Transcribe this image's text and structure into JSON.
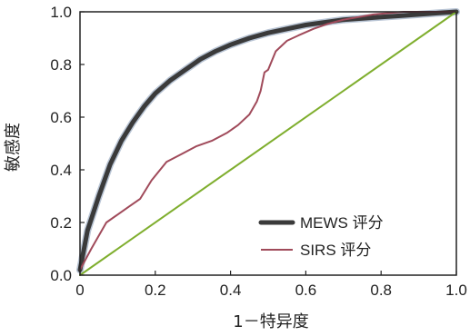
{
  "chart_data": {
    "type": "line",
    "xlabel": "1－特异度",
    "ylabel": "敏感度",
    "xlim": [
      0,
      1
    ],
    "ylim": [
      0,
      1
    ],
    "xticks": [
      "0",
      "0.2",
      "0.4",
      "0.6",
      "0.8",
      "1.0"
    ],
    "yticks": [
      "0.0",
      "0.2",
      "0.4",
      "0.6",
      "0.8",
      "1.0"
    ],
    "grid": false,
    "legend_position": "bottom-right",
    "series": [
      {
        "name": "MEWS 评分",
        "color": "#3a3a3a",
        "x": [
          0,
          0.02,
          0.05,
          0.08,
          0.11,
          0.14,
          0.17,
          0.2,
          0.24,
          0.28,
          0.32,
          0.36,
          0.4,
          0.45,
          0.5,
          0.55,
          0.6,
          0.65,
          0.7,
          0.75,
          0.8,
          0.85,
          0.9,
          0.95,
          1.0
        ],
        "y": [
          0.02,
          0.17,
          0.3,
          0.42,
          0.51,
          0.58,
          0.64,
          0.69,
          0.74,
          0.78,
          0.82,
          0.85,
          0.875,
          0.9,
          0.92,
          0.935,
          0.95,
          0.96,
          0.97,
          0.975,
          0.98,
          0.985,
          0.99,
          0.995,
          1.0
        ]
      },
      {
        "name": "SIRS 评分",
        "color": "#a04a5a",
        "x": [
          0,
          0.03,
          0.07,
          0.1,
          0.13,
          0.16,
          0.19,
          0.23,
          0.27,
          0.31,
          0.35,
          0.39,
          0.42,
          0.45,
          0.47,
          0.48,
          0.49,
          0.5,
          0.52,
          0.55,
          0.58,
          0.62,
          0.66,
          0.7,
          0.74,
          0.78,
          0.82,
          0.86,
          0.9,
          0.95,
          1.0
        ],
        "y": [
          0.02,
          0.1,
          0.2,
          0.23,
          0.26,
          0.29,
          0.36,
          0.43,
          0.46,
          0.49,
          0.51,
          0.54,
          0.57,
          0.61,
          0.66,
          0.7,
          0.77,
          0.78,
          0.85,
          0.89,
          0.91,
          0.935,
          0.955,
          0.97,
          0.98,
          0.99,
          0.995,
          1.0,
          1.0,
          1.0,
          1.0
        ]
      },
      {
        "name": "",
        "color": "#7fae2e",
        "x": [
          0,
          1
        ],
        "y": [
          0,
          1
        ]
      }
    ]
  }
}
